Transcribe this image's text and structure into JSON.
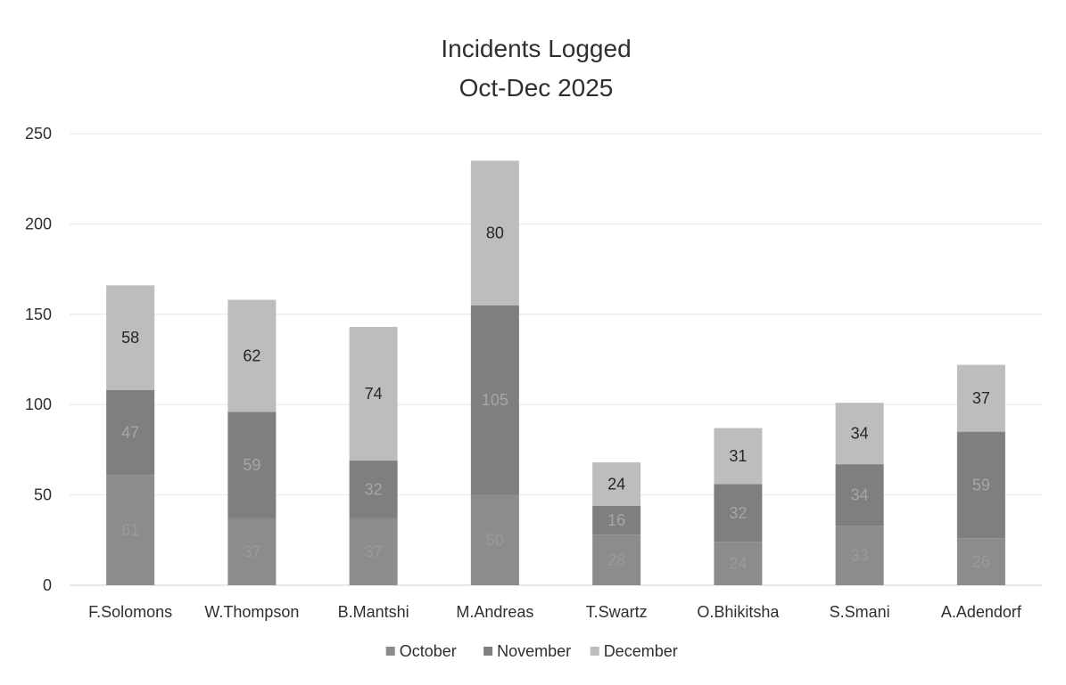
{
  "chart_data": {
    "type": "bar",
    "stacked": true,
    "title": "Incidents Logged",
    "subtitle": "Oct-Dec 2025",
    "categories": [
      "F.Solomons",
      "W.Thompson",
      "B.Mantshi",
      "M.Andreas",
      "T.Swartz",
      "O.Bhikitsha",
      "S.Smani",
      "A.Adendorf"
    ],
    "series": [
      {
        "name": "October",
        "values": [
          61,
          37,
          37,
          50,
          28,
          24,
          33,
          26
        ],
        "color": "#8c8c8c",
        "label_color": "#9a9a9a"
      },
      {
        "name": "November",
        "values": [
          47,
          59,
          32,
          105,
          16,
          32,
          34,
          59
        ],
        "color": "#7f7f7f",
        "label_color": "#a6a6a6"
      },
      {
        "name": "December",
        "values": [
          58,
          62,
          74,
          80,
          24,
          31,
          34,
          37
        ],
        "color": "#bdbdbd",
        "label_color": "#262626"
      }
    ],
    "ylim": [
      0,
      250
    ],
    "yticks": [
      0,
      50,
      100,
      150,
      200,
      250
    ],
    "grid": true,
    "legend_position": "bottom",
    "xlabel": "",
    "ylabel": ""
  }
}
